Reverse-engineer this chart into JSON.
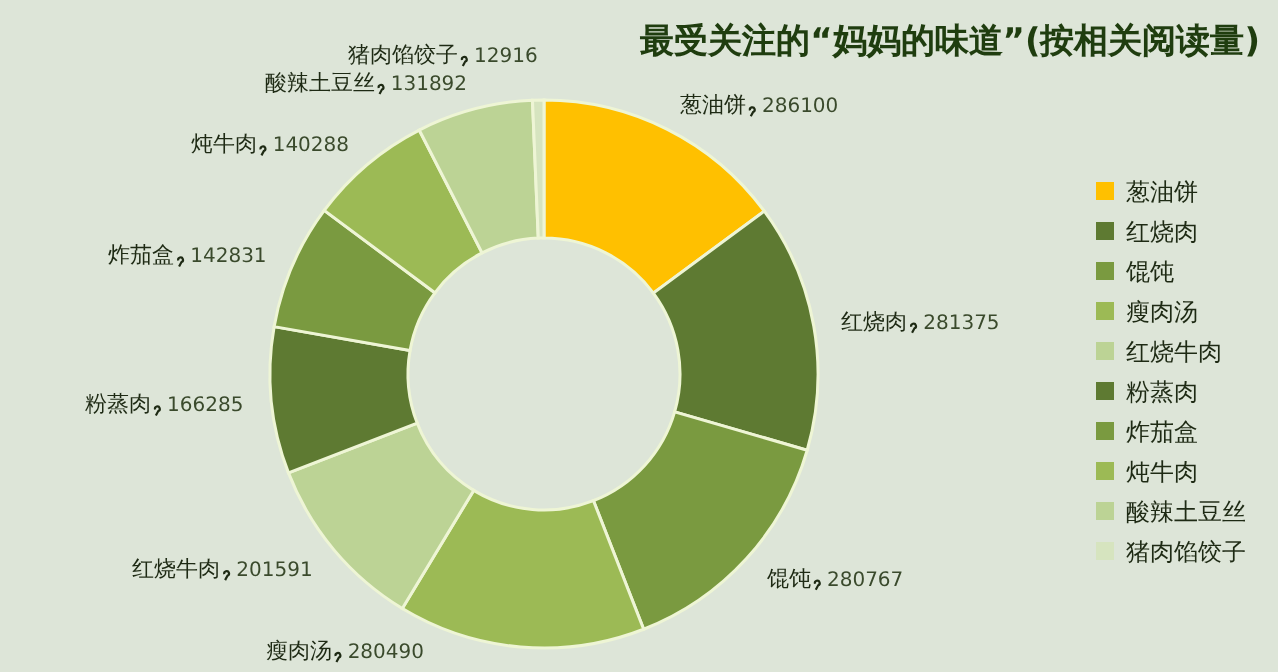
{
  "chart_data": {
    "type": "donut",
    "title": "最受关注的“妈妈的味道”(按相关阅读量)",
    "categories": [
      "葱油饼",
      "红烧肉",
      "馄饨",
      "瘦肉汤",
      "红烧牛肉",
      "粉蒸肉",
      "炸茄盒",
      "炖牛肉",
      "酸辣土豆丝",
      "猪肉馅饺子"
    ],
    "values": [
      286100,
      281375,
      280767,
      280490,
      201591,
      166285,
      142831,
      140288,
      131892,
      12916
    ],
    "colors": [
      "#ffc000",
      "#5e7a32",
      "#7a9a40",
      "#9cba55",
      "#bcd395",
      "#5e7a32",
      "#7a9a40",
      "#9cba55",
      "#bcd395",
      "#d6e4bf"
    ],
    "data_labels": true,
    "legend": "right"
  }
}
